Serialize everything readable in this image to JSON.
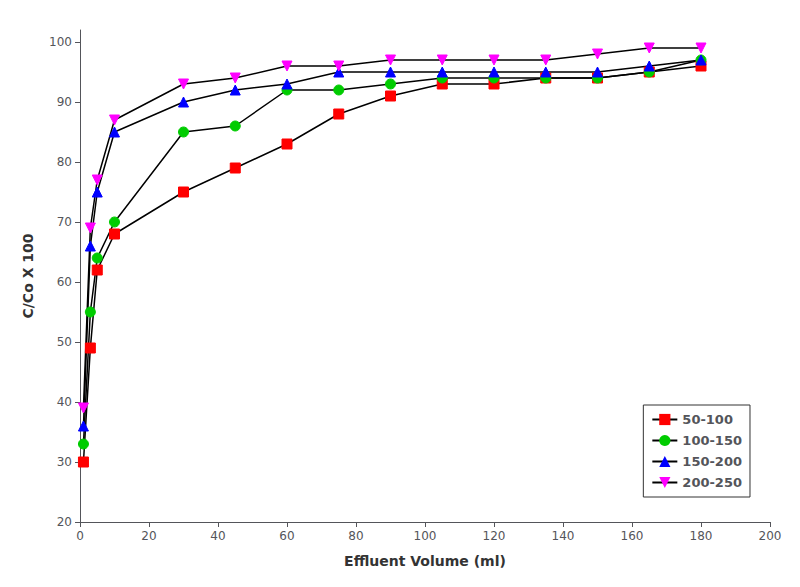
{
  "chart_data": {
    "type": "line",
    "x_label": "Effluent Volume (ml)",
    "y_label": "C/Co X 100",
    "color": "#000000",
    "series": [
      {
        "name": "50-100",
        "color": "#ff0000",
        "marker": "square",
        "x": [
          1,
          3,
          5,
          10,
          30,
          45,
          60,
          75,
          90,
          105,
          120,
          135,
          150,
          165,
          180
        ],
        "values": [
          30,
          49,
          62,
          68,
          75,
          79,
          83,
          88,
          91,
          93,
          93,
          94,
          94,
          95,
          96
        ]
      },
      {
        "name": "100-150",
        "color": "#00cc00",
        "marker": "circle",
        "x": [
          1,
          3,
          5,
          10,
          30,
          45,
          60,
          75,
          90,
          105,
          120,
          135,
          150,
          165,
          180
        ],
        "values": [
          33,
          55,
          64,
          70,
          85,
          86,
          92,
          92,
          93,
          94,
          94,
          94,
          94,
          95,
          97
        ]
      },
      {
        "name": "150-200",
        "color": "#0000ff",
        "marker": "triangle-up",
        "x": [
          1,
          3,
          5,
          10,
          30,
          45,
          60,
          75,
          90,
          105,
          120,
          135,
          150,
          165,
          180
        ],
        "values": [
          36,
          66,
          75,
          85,
          90,
          92,
          93,
          95,
          95,
          95,
          95,
          95,
          95,
          96,
          97
        ]
      },
      {
        "name": "200-250",
        "color": "#ff00ff",
        "marker": "triangle-down",
        "x": [
          1,
          3,
          5,
          10,
          30,
          45,
          60,
          75,
          90,
          105,
          120,
          135,
          150,
          165,
          180
        ],
        "values": [
          39,
          69,
          77,
          87,
          93,
          94,
          96,
          96,
          97,
          97,
          97,
          97,
          98,
          99,
          99
        ]
      }
    ],
    "xlim": [
      0,
      200
    ],
    "xticks": [
      0,
      20,
      40,
      60,
      80,
      100,
      120,
      140,
      160,
      180,
      200
    ],
    "ylim": [
      20,
      102
    ],
    "yticks": [
      20,
      30,
      40,
      50,
      60,
      70,
      80,
      90,
      100
    ],
    "grid": false,
    "legend": "lower right"
  }
}
